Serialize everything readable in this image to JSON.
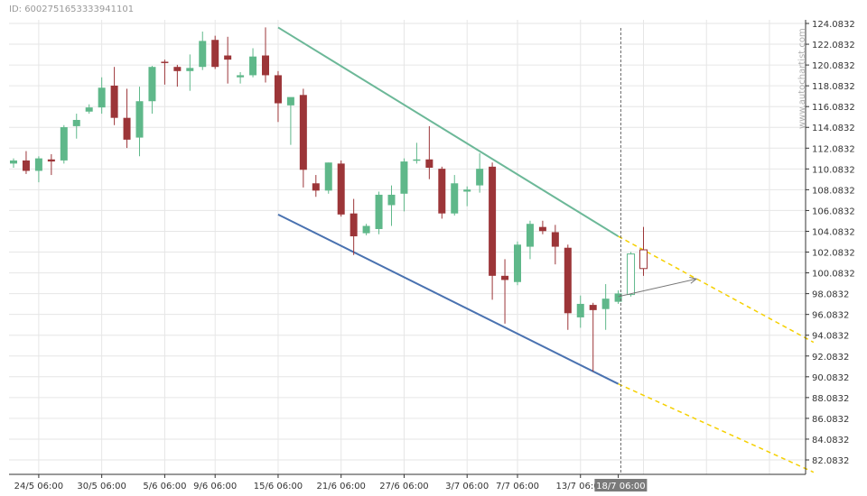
{
  "chart_id_text": "ID: 6002751653333941101",
  "watermark": "www.autochartist.com",
  "colors": {
    "bull": "#5fb88a",
    "bear": "#9c3538",
    "upper_line": "#6cb898",
    "lower_line": "#4a72b0",
    "projection": "#f5d000",
    "grid": "#e6e6e6",
    "cursor_label_bg": "#7a7a7a"
  },
  "chart_data": {
    "type": "candlestick",
    "y_ticks": [
      "124.0832",
      "122.0832",
      "120.0832",
      "118.0832",
      "116.0832",
      "114.0832",
      "112.0832",
      "110.0832",
      "108.0832",
      "106.0832",
      "104.0832",
      "102.0832",
      "100.0832",
      "98.0832",
      "96.0832",
      "94.0832",
      "92.0832",
      "90.0832",
      "88.0832",
      "86.0832",
      "84.0832",
      "82.0832"
    ],
    "ylim": [
      81.08,
      125.2
    ],
    "x_labels": [
      {
        "label": "24/5 06:00",
        "bar": 2
      },
      {
        "label": "30/5 06:00",
        "bar": 7
      },
      {
        "label": "5/6 06:00",
        "bar": 12
      },
      {
        "label": "9/6 06:00",
        "bar": 16
      },
      {
        "label": "15/6 06:00",
        "bar": 21
      },
      {
        "label": "21/6 06:00",
        "bar": 26
      },
      {
        "label": "27/6 06:00",
        "bar": 31
      },
      {
        "label": "3/7 06:00",
        "bar": 36
      },
      {
        "label": "7/7 06:00",
        "bar": 40
      },
      {
        "label": "13/7 06:00",
        "bar": 45
      },
      {
        "label": "18/7 06:00",
        "bar": 48
      }
    ],
    "cursor_label": "18/7 06:00",
    "cursor_bar": 48.2,
    "candles": [
      {
        "o": 110.6,
        "h": 111.1,
        "l": 110.2,
        "c": 110.9
      },
      {
        "o": 110.9,
        "h": 111.8,
        "l": 109.6,
        "c": 109.9
      },
      {
        "o": 109.9,
        "h": 111.3,
        "l": 108.8,
        "c": 111.1
      },
      {
        "o": 111.0,
        "h": 111.5,
        "l": 109.5,
        "c": 110.8
      },
      {
        "o": 110.9,
        "h": 114.3,
        "l": 110.6,
        "c": 114.1
      },
      {
        "o": 114.2,
        "h": 115.4,
        "l": 113.0,
        "c": 114.8
      },
      {
        "o": 115.6,
        "h": 116.3,
        "l": 115.4,
        "c": 116.0
      },
      {
        "o": 116.0,
        "h": 118.9,
        "l": 115.4,
        "c": 117.9
      },
      {
        "o": 118.1,
        "h": 119.9,
        "l": 114.3,
        "c": 115.0
      },
      {
        "o": 115.0,
        "h": 117.8,
        "l": 112.1,
        "c": 112.9
      },
      {
        "o": 113.1,
        "h": 118.0,
        "l": 111.3,
        "c": 116.6
      },
      {
        "o": 116.6,
        "h": 120.0,
        "l": 115.4,
        "c": 119.9
      },
      {
        "o": 120.4,
        "h": 120.6,
        "l": 118.2,
        "c": 120.3
      },
      {
        "o": 119.9,
        "h": 120.1,
        "l": 118.0,
        "c": 119.5
      },
      {
        "o": 119.5,
        "h": 121.1,
        "l": 117.6,
        "c": 119.8
      },
      {
        "o": 119.9,
        "h": 123.3,
        "l": 119.6,
        "c": 122.4
      },
      {
        "o": 122.5,
        "h": 122.9,
        "l": 119.7,
        "c": 119.9
      },
      {
        "o": 121.0,
        "h": 122.8,
        "l": 118.3,
        "c": 120.6
      },
      {
        "o": 118.9,
        "h": 119.4,
        "l": 118.3,
        "c": 119.1
      },
      {
        "o": 119.1,
        "h": 121.7,
        "l": 118.9,
        "c": 120.9
      },
      {
        "o": 121.0,
        "h": 123.7,
        "l": 118.4,
        "c": 119.1
      },
      {
        "o": 119.1,
        "h": 119.5,
        "l": 114.6,
        "c": 116.4
      },
      {
        "o": 116.2,
        "h": 116.9,
        "l": 112.4,
        "c": 117.0
      },
      {
        "o": 117.2,
        "h": 117.8,
        "l": 108.3,
        "c": 110.0
      },
      {
        "o": 108.7,
        "h": 109.5,
        "l": 107.4,
        "c": 108.0
      },
      {
        "o": 108.0,
        "h": 110.7,
        "l": 107.7,
        "c": 110.7
      },
      {
        "o": 110.6,
        "h": 110.9,
        "l": 105.5,
        "c": 105.7
      },
      {
        "o": 105.8,
        "h": 107.2,
        "l": 101.8,
        "c": 103.6
      },
      {
        "o": 103.9,
        "h": 104.8,
        "l": 103.7,
        "c": 104.6
      },
      {
        "o": 104.3,
        "h": 107.9,
        "l": 103.8,
        "c": 107.6
      },
      {
        "o": 106.6,
        "h": 108.5,
        "l": 104.6,
        "c": 107.6
      },
      {
        "o": 107.7,
        "h": 111.1,
        "l": 106.0,
        "c": 110.8
      },
      {
        "o": 110.9,
        "h": 112.6,
        "l": 110.6,
        "c": 111.0
      },
      {
        "o": 111.0,
        "h": 114.2,
        "l": 109.1,
        "c": 110.2
      },
      {
        "o": 110.1,
        "h": 110.3,
        "l": 105.3,
        "c": 105.8
      },
      {
        "o": 105.8,
        "h": 109.5,
        "l": 105.6,
        "c": 108.7
      },
      {
        "o": 107.9,
        "h": 108.4,
        "l": 106.5,
        "c": 108.1
      },
      {
        "o": 108.5,
        "h": 111.6,
        "l": 107.8,
        "c": 110.1
      },
      {
        "o": 110.3,
        "h": 110.7,
        "l": 97.5,
        "c": 99.8
      },
      {
        "o": 99.8,
        "h": 101.4,
        "l": 95.2,
        "c": 99.4
      },
      {
        "o": 99.2,
        "h": 103.1,
        "l": 98.9,
        "c": 102.8
      },
      {
        "o": 102.6,
        "h": 105.1,
        "l": 101.4,
        "c": 104.8
      },
      {
        "o": 104.5,
        "h": 105.1,
        "l": 103.8,
        "c": 104.1
      },
      {
        "o": 104.0,
        "h": 104.7,
        "l": 100.9,
        "c": 102.6
      },
      {
        "o": 102.5,
        "h": 102.8,
        "l": 94.6,
        "c": 96.2
      },
      {
        "o": 95.8,
        "h": 97.9,
        "l": 94.8,
        "c": 97.1
      },
      {
        "o": 97.0,
        "h": 97.2,
        "l": 90.6,
        "c": 96.5
      },
      {
        "o": 96.6,
        "h": 99.0,
        "l": 94.6,
        "c": 97.6
      },
      {
        "o": 97.3,
        "h": 98.4,
        "l": 97.1,
        "c": 98.1
      }
    ],
    "outlined_candles": [
      {
        "bar": 49,
        "o": 98.0,
        "h": 102.1,
        "l": 97.8,
        "c": 101.9,
        "color": "bull"
      },
      {
        "bar": 50,
        "o": 102.3,
        "h": 104.5,
        "l": 99.8,
        "c": 100.5,
        "color": "bear"
      }
    ],
    "channel": {
      "upper": {
        "x1": 21,
        "y1": 123.7,
        "x2": 48,
        "y2": 103.6,
        "proj_x2": 63.5,
        "proj_y2": 93.4
      },
      "lower": {
        "x1": 21,
        "y1": 105.7,
        "x2": 48,
        "y2": 89.4,
        "proj_x2": 63.5,
        "proj_y2": 80.9
      }
    },
    "forecast_arrow": {
      "x1": 48,
      "y1": 97.8,
      "x2": 54.2,
      "y2": 99.5
    }
  }
}
